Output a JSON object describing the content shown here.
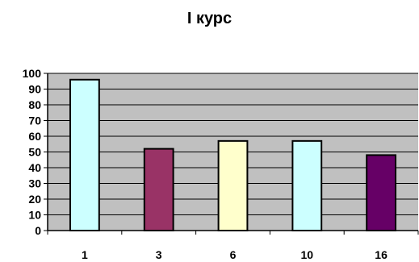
{
  "chart_data": {
    "type": "bar",
    "title": "I курс",
    "xlabel": "",
    "ylabel": "",
    "categories": [
      "1",
      "3",
      "6",
      "10",
      "16"
    ],
    "values": [
      96,
      52,
      57,
      57,
      48
    ],
    "ylim": [
      0,
      100
    ],
    "yticks": [
      "0",
      "10",
      "20",
      "30",
      "40",
      "50",
      "60",
      "70",
      "80",
      "90",
      "100"
    ],
    "grid": true,
    "legend": "none",
    "colors": {
      "plot_background": "#C0C0C0",
      "gridline": "#000000",
      "bar_outline": "#000000",
      "bars": [
        "#CCFFFF",
        "#993366",
        "#FFFFCC",
        "#CCFFFF",
        "#660066"
      ]
    }
  }
}
